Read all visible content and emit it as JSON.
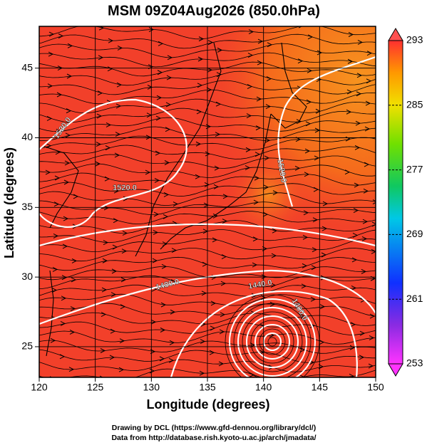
{
  "chart_data": {
    "type": "map",
    "title": "MSM 09Z04Aug2026 (850.0hPa)",
    "xlabel": "Longitude (degrees)",
    "ylabel": "Latitude  (degrees)",
    "xlim": [
      120,
      150
    ],
    "ylim": [
      22.8,
      48
    ],
    "xticks": [
      120,
      125,
      130,
      135,
      140,
      145,
      150
    ],
    "yticks": [
      25,
      30,
      35,
      40,
      45
    ],
    "grid": true,
    "colorbar": {
      "lim": [
        253,
        293
      ],
      "ticks": [
        253,
        261,
        269,
        277,
        285,
        293
      ]
    },
    "contour_labels": [
      "1520.0",
      "1520.0",
      "1520.0",
      "1480.0",
      "1440.0",
      "1400.0"
    ],
    "credits": [
      "Drawing by DCL (https://www.gfd-dennou.org/library/dcl/)",
      "Data from http://database.rish.kyoto-u.ac.jp/arch/jmadata/"
    ]
  }
}
